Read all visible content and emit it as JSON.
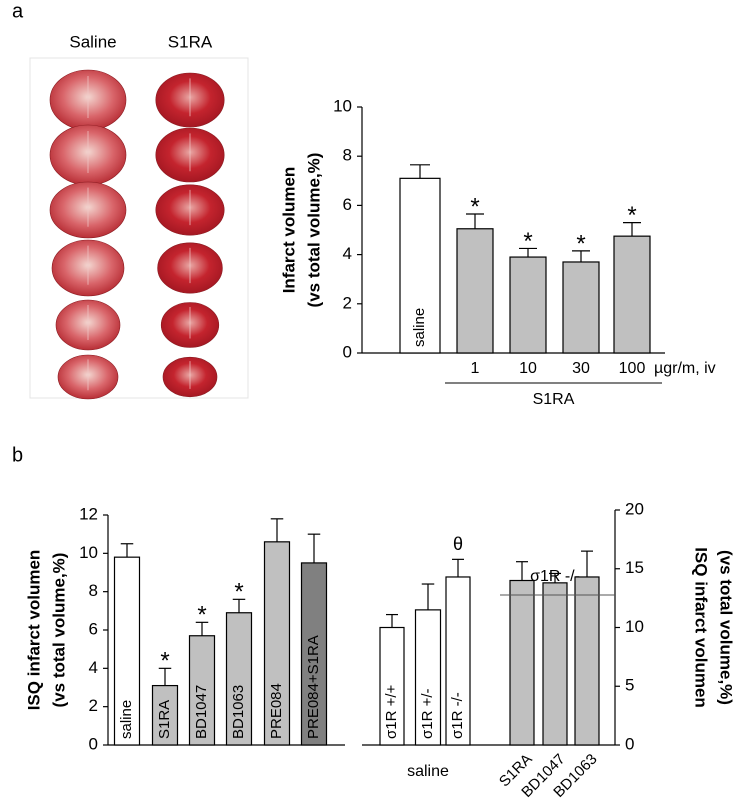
{
  "panel_labels": [
    "a",
    "b"
  ],
  "image_labels": [
    "Saline",
    "S1RA"
  ],
  "chart_data": [
    {
      "type": "bar",
      "ylabel": [
        "Infarct volumen",
        "(vs total volume,%)"
      ],
      "categories": [
        "saline",
        "1",
        "10",
        "30",
        "100"
      ],
      "values": [
        7.1,
        5.05,
        3.9,
        3.7,
        4.75
      ],
      "errors": [
        0.55,
        0.6,
        0.35,
        0.45,
        0.55
      ],
      "colors": [
        "#ffffff",
        "#c0c0c0",
        "#c0c0c0",
        "#c0c0c0",
        "#c0c0c0"
      ],
      "markers": [
        null,
        "*",
        "*",
        "*",
        "*"
      ],
      "x_unit": "µgr/m, iv",
      "group_labels": [
        "S1RA"
      ],
      "ylim": [
        0,
        10
      ],
      "yticks": [
        0,
        2,
        4,
        6,
        8,
        10
      ]
    },
    {
      "type": "bar",
      "ylabel": [
        "ISQ infarct volumen",
        "(vs total volume,%)"
      ],
      "categories": [
        "saline",
        "S1RA",
        "BD1047",
        "BD1063",
        "PRE084",
        "PRE084+S1RA"
      ],
      "values": [
        9.8,
        3.1,
        5.7,
        6.9,
        10.6,
        9.5
      ],
      "errors": [
        0.7,
        0.9,
        0.7,
        0.7,
        1.2,
        1.5
      ],
      "colors": [
        "#ffffff",
        "#c0c0c0",
        "#c0c0c0",
        "#c0c0c0",
        "#c0c0c0",
        "#808080"
      ],
      "markers": [
        null,
        "*",
        "*",
        "*",
        null,
        null
      ],
      "ylim": [
        0,
        12
      ],
      "yticks": [
        0,
        2,
        4,
        6,
        8,
        10,
        12
      ]
    },
    {
      "type": "bar",
      "ylabel": [
        "ISQ infarct volumen",
        "(vs total volume,%)"
      ],
      "categories": [
        "σ1R +/+",
        "σ1R +/-",
        "σ1R -/-",
        "S1RA",
        "BD1047",
        "BD1063"
      ],
      "values": [
        10,
        11.5,
        14.3,
        14,
        13.8,
        14.3
      ],
      "errors": [
        1.1,
        2.2,
        1.5,
        1.6,
        0.8,
        2.2
      ],
      "colors": [
        "#ffffff",
        "#ffffff",
        "#ffffff",
        "#c0c0c0",
        "#c0c0c0",
        "#c0c0c0"
      ],
      "markers": [
        null,
        null,
        "θ",
        null,
        null,
        null
      ],
      "group_labels": [
        "saline",
        "σ1R -/-"
      ],
      "yaxis_side": "right",
      "ylim": [
        0,
        20
      ],
      "yticks": [
        0,
        5,
        10,
        15,
        20
      ]
    }
  ]
}
